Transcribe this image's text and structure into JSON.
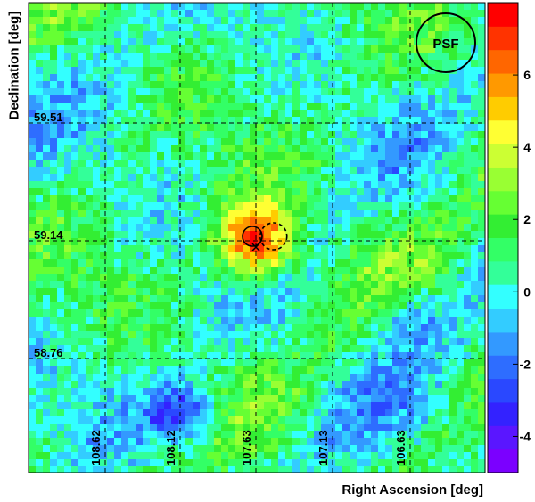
{
  "chart_data": {
    "type": "heatmap",
    "title": "",
    "xlabel": "Right Ascension [deg]",
    "ylabel": "Declination [deg]",
    "x_ticks": [
      "108.62",
      "108.12",
      "107.63",
      "107.13",
      "106.63"
    ],
    "y_ticks": [
      "59.51",
      "59.14",
      "58.76"
    ],
    "colorbar": {
      "ticks": [
        "6",
        "4",
        "2",
        "0",
        "-2",
        "-4"
      ],
      "tick_values": [
        6,
        4,
        2,
        0,
        -2,
        -4
      ],
      "range": [
        -5,
        8
      ]
    },
    "grid": true,
    "hotspot": {
      "ra": 107.63,
      "dec": 59.14,
      "peak": 7.2
    },
    "cold_regions": [
      {
        "ra": 108.12,
        "dec": 58.6,
        "value": -3.8
      },
      {
        "ra": 106.63,
        "dec": 58.9,
        "value": -1.8
      }
    ],
    "markers": [
      {
        "type": "circle-solid",
        "ra": 107.63,
        "dec": 59.14
      },
      {
        "type": "circle-dashed",
        "ra": 107.56,
        "dec": 59.14
      },
      {
        "type": "x-marker",
        "ra": 107.63,
        "dec": 59.12
      }
    ],
    "psf_label": "PSF"
  }
}
